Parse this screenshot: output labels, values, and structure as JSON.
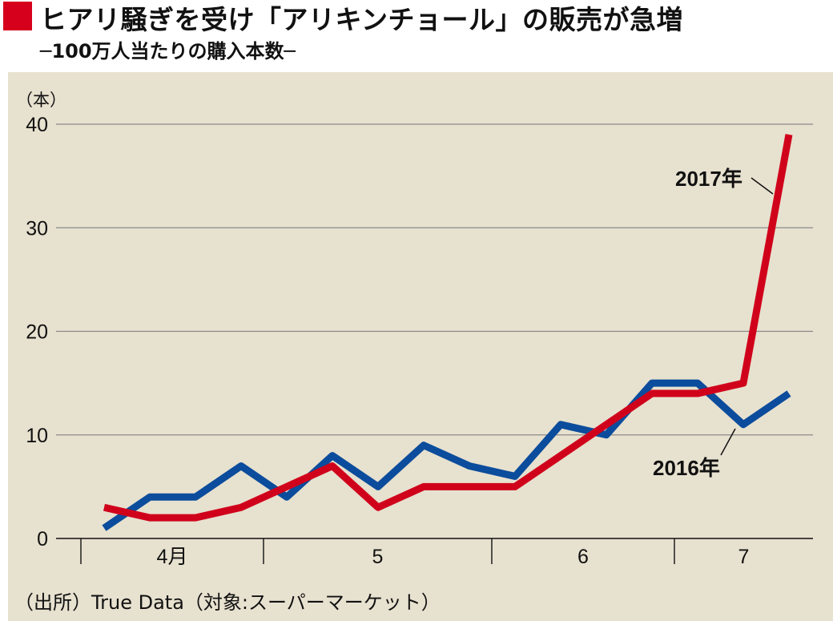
{
  "header": {
    "title": "ヒアリ騒ぎを受け「アリキンチョール」の販売が急増",
    "subtitle": "─100万人当たりの購入本数─"
  },
  "source": "（出所）True Data（対象:スーパーマーケット）",
  "colors": {
    "accent": "#d6001c",
    "series_2017": "#d0021b",
    "series_2016": "#0b4c9c",
    "panel": "#e7e1cf"
  },
  "chart_data": {
    "type": "line",
    "ylabel": "（本）",
    "ylim": [
      0,
      40
    ],
    "yticks": [
      0,
      10,
      20,
      30,
      40
    ],
    "grid": true,
    "month_labels": [
      "4月",
      "5",
      "6",
      "7"
    ],
    "month_ranges": [
      [
        0,
        4
      ],
      [
        4,
        9
      ],
      [
        9,
        13
      ],
      [
        13,
        15
      ]
    ],
    "x": [
      1,
      2,
      3,
      4,
      5,
      6,
      7,
      8,
      9,
      10,
      11,
      12,
      13,
      14,
      15,
      16
    ],
    "series": [
      {
        "name": "2016年",
        "color": "#0b4c9c",
        "values": [
          1,
          4,
          4,
          7,
          4,
          8,
          5,
          9,
          7,
          6,
          11,
          10,
          15,
          15,
          11,
          14
        ]
      },
      {
        "name": "2017年",
        "color": "#d0021b",
        "values": [
          3,
          2,
          2,
          3,
          5,
          7,
          3,
          5,
          5,
          5,
          8,
          11,
          14,
          14,
          15,
          39
        ]
      }
    ]
  }
}
